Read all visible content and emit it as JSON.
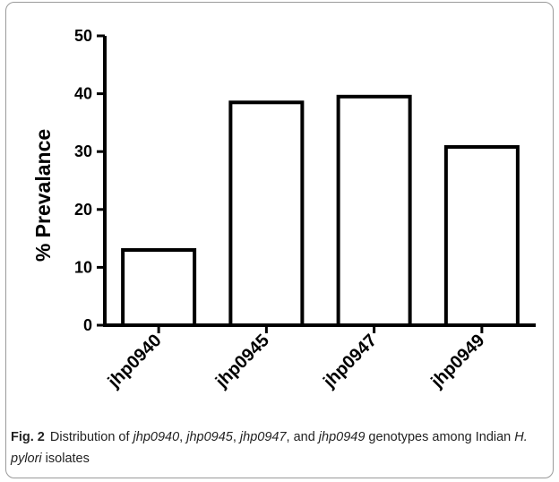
{
  "chart_data": {
    "type": "bar",
    "categories": [
      "jhp0940",
      "jhp0945",
      "jhp0947",
      "jhp0949"
    ],
    "values": [
      13,
      38.5,
      39.5,
      30.8
    ],
    "ylabel": "% Prevalance",
    "xlabel": "",
    "ylim": [
      0,
      50
    ],
    "yticks": [
      0,
      10,
      20,
      30,
      40,
      50
    ],
    "grid": false,
    "bar_fill": "#ffffff",
    "bar_stroke": "#000000"
  },
  "caption": {
    "label": "Fig. 2",
    "parts": [
      {
        "text": "Distribution of ",
        "italic": false
      },
      {
        "text": "jhp0940",
        "italic": true
      },
      {
        "text": ", ",
        "italic": false
      },
      {
        "text": "jhp0945",
        "italic": true
      },
      {
        "text": ", ",
        "italic": false
      },
      {
        "text": "jhp0947",
        "italic": true
      },
      {
        "text": ", and ",
        "italic": false
      },
      {
        "text": "jhp0949",
        "italic": true
      },
      {
        "text": " genotypes among Indian ",
        "italic": false
      },
      {
        "text": "H. pylori",
        "italic": true
      },
      {
        "text": " isolates",
        "italic": false
      }
    ]
  }
}
